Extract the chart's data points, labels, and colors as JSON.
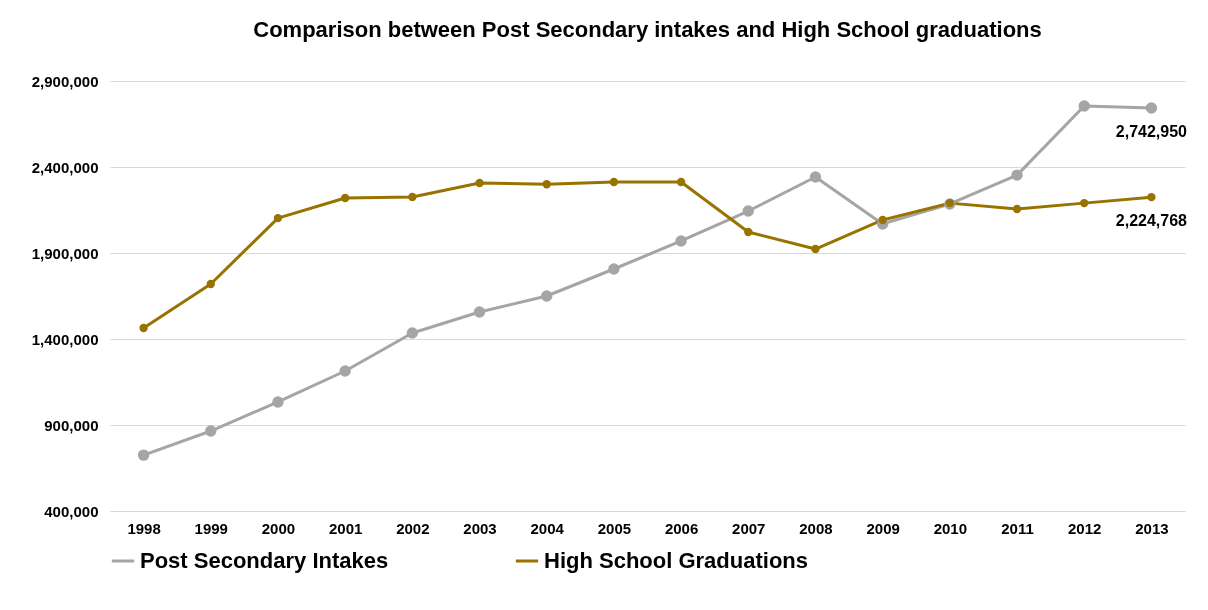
{
  "chart_data": {
    "type": "line",
    "title": "Comparison between Post Secondary intakes and High School graduations",
    "categories": [
      "1998",
      "1999",
      "2000",
      "2001",
      "2002",
      "2003",
      "2004",
      "2005",
      "2006",
      "2007",
      "2008",
      "2009",
      "2010",
      "2011",
      "2012",
      "2013"
    ],
    "series": [
      {
        "name": "Post Secondary Intakes",
        "color": "#a5a5a5",
        "values": [
          725000,
          865000,
          1034000,
          1214000,
          1435000,
          1557000,
          1650000,
          1807000,
          1970000,
          2144000,
          2342000,
          2069000,
          2185000,
          2353000,
          2755000,
          2742950
        ],
        "value_labels": [
          null,
          null,
          null,
          null,
          null,
          null,
          null,
          null,
          null,
          null,
          null,
          null,
          null,
          null,
          null,
          "2,742,950"
        ]
      },
      {
        "name": "High School Graduations",
        "color": "#997300",
        "values": [
          1464000,
          1720000,
          2103000,
          2220000,
          2226000,
          2307000,
          2300000,
          2313000,
          2313000,
          2022000,
          1923000,
          2092000,
          2190000,
          2156000,
          2190000,
          2224768
        ],
        "value_labels": [
          null,
          null,
          null,
          null,
          null,
          null,
          null,
          null,
          null,
          null,
          null,
          null,
          null,
          null,
          null,
          "2,224,768"
        ]
      }
    ],
    "ylim": [
      400000,
      2900000
    ],
    "yticks": [
      {
        "value": 400000,
        "label": "400,000"
      },
      {
        "value": 900000,
        "label": "900,000"
      },
      {
        "value": 1400000,
        "label": "1,400,000"
      },
      {
        "value": 1900000,
        "label": "1,900,000"
      },
      {
        "value": 2400000,
        "label": "2,400,000"
      },
      {
        "value": 2900000,
        "label": "2,900,000"
      }
    ],
    "grid": "y",
    "legend": "bottom",
    "marker": "circle",
    "line_style": "solid"
  }
}
